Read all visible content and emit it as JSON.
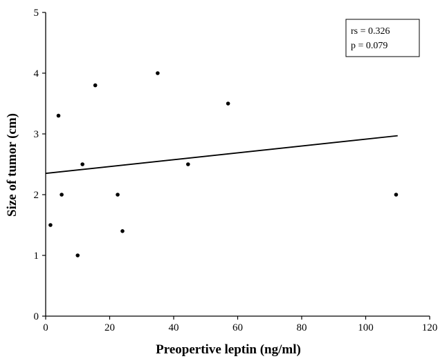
{
  "chart_data": {
    "type": "scatter",
    "xlabel": "Preopertive leptin (ng/ml)",
    "ylabel": "Size of tumor (cm)",
    "xlim": [
      0,
      120
    ],
    "ylim": [
      0,
      5
    ],
    "x_ticks": [
      "0",
      "20",
      "40",
      "60",
      "80",
      "100",
      "120"
    ],
    "y_ticks": [
      "0",
      "1",
      "2",
      "3",
      "4",
      "5"
    ],
    "grid": false,
    "points": [
      {
        "x": 1.5,
        "y": 1.5
      },
      {
        "x": 4,
        "y": 3.3
      },
      {
        "x": 5,
        "y": 2
      },
      {
        "x": 10,
        "y": 1
      },
      {
        "x": 11.5,
        "y": 2.5
      },
      {
        "x": 15.5,
        "y": 3.8
      },
      {
        "x": 22.5,
        "y": 2
      },
      {
        "x": 24,
        "y": 1.4
      },
      {
        "x": 35,
        "y": 4
      },
      {
        "x": 44.5,
        "y": 2.5
      },
      {
        "x": 57,
        "y": 3.5
      },
      {
        "x": 109.5,
        "y": 2
      }
    ],
    "trendline": {
      "x": [
        0,
        110
      ],
      "y": [
        2.35,
        2.97
      ]
    },
    "annotation": {
      "lines": [
        "rs = 0.326",
        "p = 0.079"
      ],
      "placement": "top-right"
    }
  }
}
